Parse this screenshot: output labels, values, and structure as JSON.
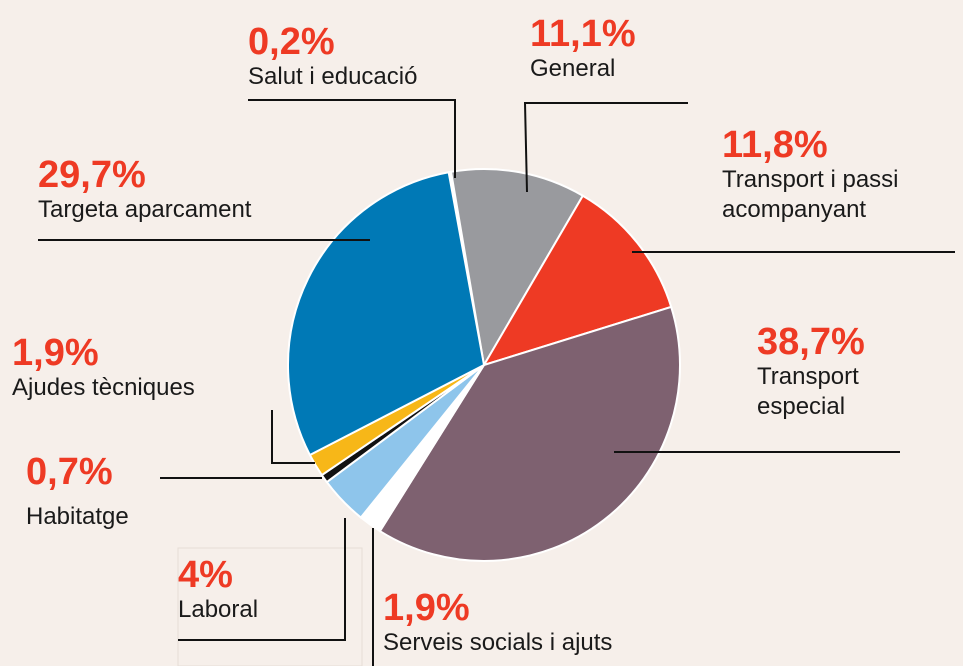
{
  "chart_data": {
    "type": "pie",
    "categories": [
      "Salut i educació",
      "General",
      "Transport i passi acompanyant",
      "Transport especial",
      "Serveis socials i ajuts",
      "Laboral",
      "Habitatge",
      "Ajudes tècniques",
      "Targeta aparcament"
    ],
    "values": [
      0.2,
      11.1,
      11.8,
      38.7,
      1.9,
      4,
      0.7,
      1.9,
      29.7
    ],
    "value_labels": [
      "0,2%",
      "11,1%",
      "11,8%",
      "38,7%",
      "1,9%",
      "4%",
      "0,7%",
      "1,9%",
      "29,7%"
    ],
    "colors": [
      "#ffffff",
      "#999a9e",
      "#ee3a24",
      "#7e6170",
      "#ffffff",
      "#8ec5eb",
      "#111111",
      "#f7b718",
      "#0079b6"
    ]
  }
}
